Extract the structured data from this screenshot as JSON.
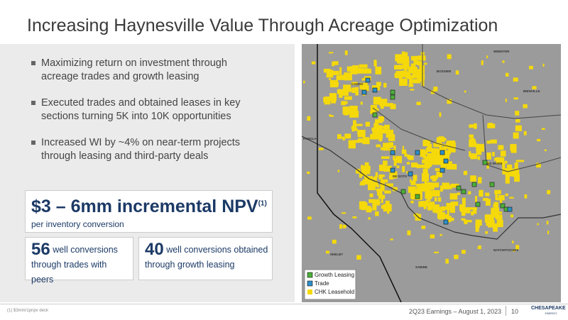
{
  "header": {
    "title": "Increasing Haynesville Value Through Acreage Optimization"
  },
  "bullets": [
    "Maximizing return on investment through acreage trades and growth leasing",
    "Executed trades and obtained leases in key sections turning 5K into 10K opportunities",
    "Increased WI by ~4% on near-term projects through leasing and third-party deals"
  ],
  "highlight": {
    "headline": "$3 – 6mm incremental NPV",
    "footnote_ref": "(1)",
    "subtext": "per inventory conversion"
  },
  "stats": [
    {
      "number": "56",
      "text": "well conversions through trades with peers"
    },
    {
      "number": "40",
      "text": "well conversions obtained through growth leasing"
    }
  ],
  "map": {
    "counties": [
      "WEBSTER",
      "BOSSIER",
      "CADDO",
      "BIENVILLE",
      "PANOLA",
      "DE SOTO",
      "RED RIVER",
      "NATCHITOCHES",
      "SHELBY",
      "SABINE"
    ],
    "legend": [
      "Growth Leasing",
      "Trade",
      "CHK Leasehold"
    ]
  },
  "footer": {
    "footnote": "(1)  $3mm/1pnpv deck",
    "event": "2Q23 Earnings – August 1, 2023",
    "page": "10",
    "logo": "CHESAPEAKE",
    "logo_sub": "ENERGY"
  }
}
